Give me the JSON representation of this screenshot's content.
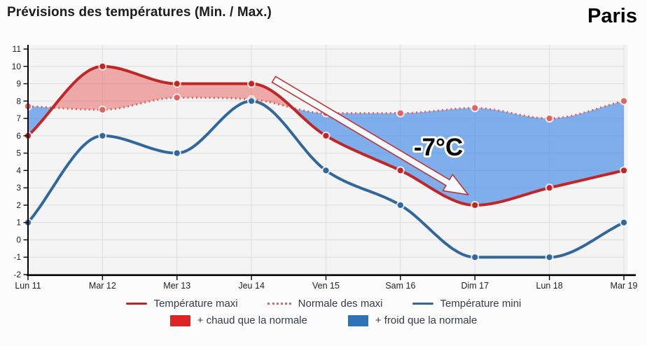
{
  "header": {
    "title": "Prévisions des températures (Min. / Max.)",
    "city": "Paris"
  },
  "chart_data": {
    "type": "line",
    "title": "Prévisions des températures (Min. / Max.)",
    "xlabel": "",
    "ylabel": "",
    "categories": [
      "Lun 11",
      "Mar 12",
      "Mer 13",
      "Jeu 14",
      "Ven 15",
      "Sam 16",
      "Dim 17",
      "Lun 18",
      "Mar 19"
    ],
    "series": [
      {
        "name": "Température maxi",
        "color": "#c12626",
        "style": "solid",
        "values": [
          6,
          10,
          9,
          9,
          6,
          4,
          2,
          3,
          4
        ]
      },
      {
        "name": "Normale des maxi",
        "color": "#dd6363",
        "style": "dotted",
        "values": [
          7.7,
          7.5,
          8.2,
          8.1,
          7.3,
          7.3,
          7.6,
          7.0,
          8.0
        ]
      },
      {
        "name": "Température mini",
        "color": "#31689b",
        "style": "solid",
        "values": [
          1,
          6,
          5,
          8,
          4,
          2,
          -1,
          -1,
          1
        ]
      }
    ],
    "fills": {
      "warmer": {
        "label": "+ chaud que la normale",
        "color": "#db2525",
        "fill_rgba": "rgba(226,63,63,0.42)"
      },
      "colder": {
        "label": "+ froid que la normale",
        "color": "#2e72b8",
        "fill_rgba": "rgba(47,128,230,0.60)"
      }
    },
    "ylim": [
      -2,
      11
    ],
    "yticks": [
      -2,
      -1,
      0,
      1,
      2,
      3,
      4,
      5,
      6,
      7,
      8,
      9,
      10,
      11
    ],
    "grid": true,
    "legend_position": "bottom",
    "annotation": {
      "label": "-7°C",
      "color": "#c03434",
      "arrow_from": {
        "index": 3.3,
        "value": 9.25
      },
      "arrow_to": {
        "index": 5.91,
        "value": 2.6
      },
      "label_at": {
        "index": 5.51,
        "value": 4.86
      }
    }
  }
}
